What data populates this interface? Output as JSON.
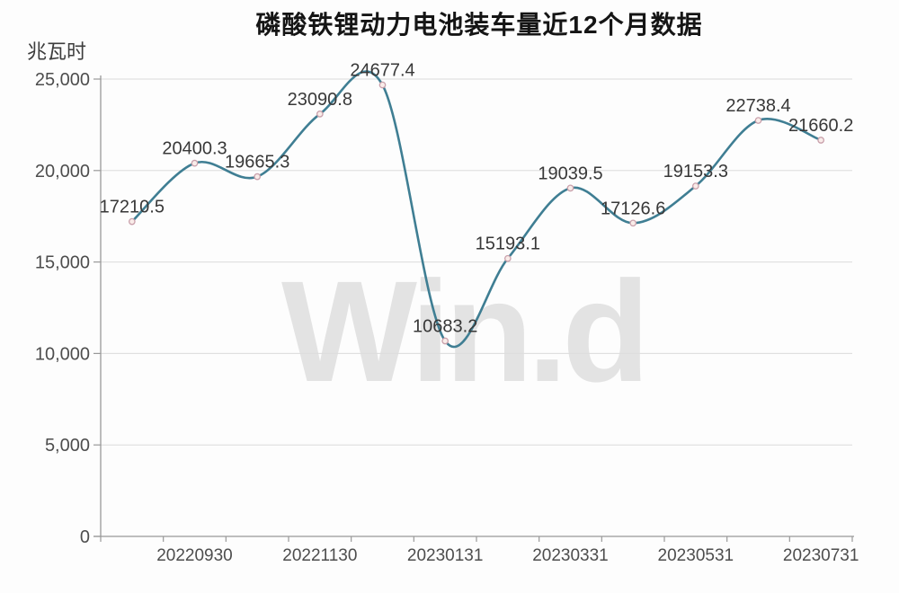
{
  "colors": {
    "line": "#3f7e93",
    "marker_fill": "#f9ece9",
    "marker_stroke": "#c9a0ab",
    "grid": "#dcdcdc",
    "axis": "#999999",
    "point_label": "#383838",
    "tick_label": "#4d4d4d",
    "title": "#151515",
    "watermark": "#e3e3e3",
    "background": "#fdfdfd"
  },
  "watermark_text": "Win.d",
  "chart_data": {
    "type": "line",
    "smooth": true,
    "title": "磷酸铁锂动力电池装车量近12个月数据",
    "ylabel": "兆瓦时",
    "xlabel": "",
    "values": [
      17210.5,
      20400.3,
      19665.3,
      23090.8,
      24677.4,
      10683.2,
      15193.1,
      19039.5,
      17126.6,
      19153.3,
      22738.4,
      21660.2
    ],
    "point_labels": [
      "17210.5",
      "20400.3",
      "19665.3",
      "23090.8",
      "24677.4",
      "10683.2",
      "15193.1",
      "19039.5",
      "17126.6",
      "19153.3",
      "22738.4",
      "21660.2"
    ],
    "x_tick_labels": [
      "20220930",
      "20221130",
      "20230131",
      "20230331",
      "20230531",
      "20230731"
    ],
    "x_tick_point_indices": [
      1,
      3,
      5,
      7,
      9,
      11
    ],
    "y_tick_values": [
      0,
      5000,
      10000,
      15000,
      20000,
      25000
    ],
    "y_tick_labels": [
      "0",
      "5,000",
      "10,000",
      "15,000",
      "20,000",
      "25,000"
    ],
    "ylim": [
      0,
      25000
    ],
    "grid": true,
    "legend_position": "none"
  }
}
